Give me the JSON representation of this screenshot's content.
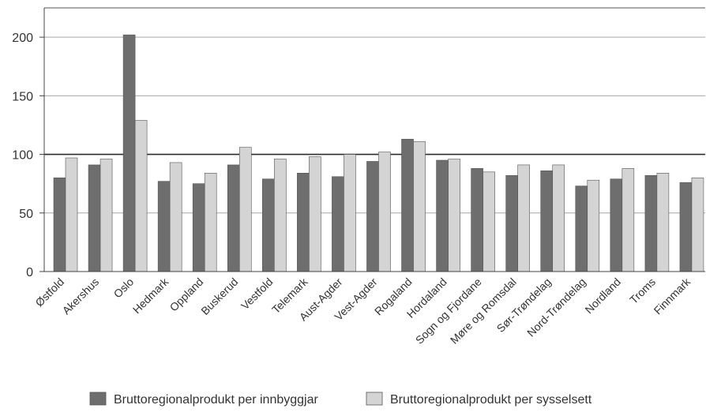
{
  "chart_data": {
    "type": "bar",
    "title": "",
    "xlabel": "",
    "ylabel": "",
    "ylim": [
      0,
      225
    ],
    "yticks": [
      0,
      50,
      100,
      150,
      200
    ],
    "grid": true,
    "reference_line": 100,
    "categories": [
      "Østfold",
      "Akershus",
      "Oslo",
      "Hedmark",
      "Oppland",
      "Buskerud",
      "Vestfold",
      "Telemark",
      "Aust-Agder",
      "Vest-Agder",
      "Rogaland",
      "Hordaland",
      "Sogn og Fjordane",
      "Møre og Romsdal",
      "Sør-Trøndelag",
      "Nord-Trøndelag",
      "Nordland",
      "Troms",
      "Finnmark"
    ],
    "series": [
      {
        "name": "Bruttoregionalprodukt per innbyggjar",
        "color": "#6e6e6e",
        "values": [
          80,
          91,
          202,
          77,
          75,
          91,
          79,
          84,
          81,
          94,
          113,
          95,
          88,
          82,
          86,
          73,
          79,
          82,
          76
        ]
      },
      {
        "name": "Bruttoregionalprodukt per sysselsett",
        "color": "#d4d4d4",
        "values": [
          97,
          96,
          129,
          93,
          84,
          106,
          96,
          98,
          100,
          102,
          111,
          96,
          85,
          91,
          91,
          78,
          88,
          84,
          80
        ]
      }
    ],
    "legend": "bottom"
  }
}
